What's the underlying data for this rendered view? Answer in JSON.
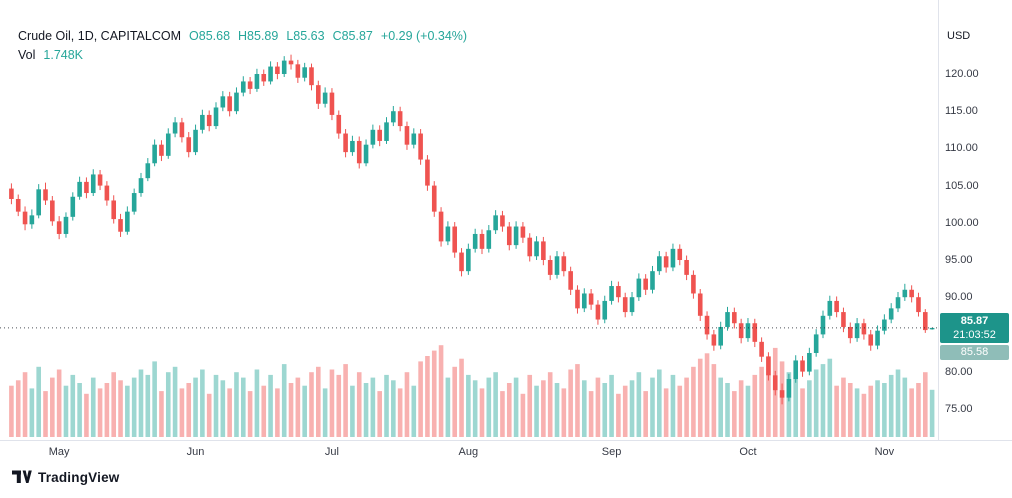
{
  "header": {
    "symbol_title": "Crude Oil, 1D, CAPITALCOM",
    "ohlc_tokens": [
      "O85.68",
      "H85.89",
      "L85.63",
      "C85.87",
      "+0.29 (+0.34%)"
    ],
    "vol_label": "Vol",
    "vol_value": "1.748K"
  },
  "price_axis": {
    "currency": "USD",
    "last_price_badge": {
      "price": "85.87",
      "countdown": "21:03:52"
    },
    "prev_close_badge": "85.58"
  },
  "footer": {
    "brand": "TradingView"
  },
  "chart_data": {
    "type": "candlestick+volume",
    "title": "Crude Oil, 1D, CAPITALCOM",
    "ylabel": "USD",
    "ylim": [
      73.5,
      123.5
    ],
    "y_ticks": [
      120,
      115,
      110,
      105,
      100,
      95,
      90,
      85,
      80,
      75
    ],
    "x_ticks": [
      {
        "label": "May",
        "i": 7
      },
      {
        "label": "Jun",
        "i": 27
      },
      {
        "label": "Jul",
        "i": 47
      },
      {
        "label": "Aug",
        "i": 67
      },
      {
        "label": "Sep",
        "i": 88
      },
      {
        "label": "Oct",
        "i": 108
      },
      {
        "label": "Nov",
        "i": 128
      }
    ],
    "last_price": 85.87,
    "prev_close": 85.58,
    "last_volume_k": 1.748,
    "colors": {
      "up": "#26a69a",
      "down": "#ef5350",
      "up_vol": "rgba(38,166,154,0.45)",
      "down_vol": "rgba(239,83,80,0.45)",
      "badge": "#1d948a",
      "prev_badge": "#8fbdb8",
      "grid_line": "#e0e3eb",
      "dotted_line": "#131722"
    },
    "candles": [
      [
        104.6,
        105.3,
        102.5,
        103.2,
        1.9
      ],
      [
        103.2,
        103.8,
        100.9,
        101.5,
        2.1
      ],
      [
        101.5,
        102.2,
        99.0,
        99.8,
        2.4
      ],
      [
        99.8,
        101.8,
        99.2,
        101.0,
        1.8
      ],
      [
        101.0,
        105.2,
        100.6,
        104.5,
        2.6
      ],
      [
        104.5,
        105.4,
        102.4,
        103.0,
        1.7
      ],
      [
        103.0,
        103.6,
        99.6,
        100.2,
        2.2
      ],
      [
        100.2,
        100.9,
        97.8,
        98.5,
        2.5
      ],
      [
        98.5,
        101.4,
        98.0,
        100.8,
        1.9
      ],
      [
        100.8,
        104.1,
        100.3,
        103.5,
        2.3
      ],
      [
        103.5,
        106.2,
        103.1,
        105.5,
        2.0
      ],
      [
        105.5,
        106.1,
        103.3,
        104.0,
        1.6
      ],
      [
        104.0,
        107.2,
        103.6,
        106.5,
        2.2
      ],
      [
        106.5,
        107.1,
        104.4,
        105.0,
        1.8
      ],
      [
        105.0,
        105.6,
        102.3,
        103.0,
        2.0
      ],
      [
        103.0,
        103.7,
        99.9,
        100.5,
        2.4
      ],
      [
        100.5,
        101.2,
        98.1,
        98.8,
        2.1
      ],
      [
        98.8,
        102.2,
        98.4,
        101.5,
        1.9
      ],
      [
        101.5,
        104.6,
        101.1,
        104.0,
        2.2
      ],
      [
        104.0,
        106.7,
        103.5,
        106.0,
        2.5
      ],
      [
        106.0,
        108.7,
        105.6,
        108.0,
        2.3
      ],
      [
        108.0,
        111.2,
        107.6,
        110.5,
        2.8
      ],
      [
        110.5,
        111.1,
        108.3,
        109.0,
        1.7
      ],
      [
        109.0,
        112.7,
        108.6,
        112.0,
        2.4
      ],
      [
        112.0,
        114.2,
        111.5,
        113.5,
        2.6
      ],
      [
        113.5,
        114.1,
        110.8,
        111.5,
        1.8
      ],
      [
        111.5,
        112.2,
        108.8,
        109.5,
        2.0
      ],
      [
        109.5,
        113.2,
        109.1,
        112.5,
        2.2
      ],
      [
        112.5,
        115.2,
        112.0,
        114.5,
        2.5
      ],
      [
        114.5,
        115.1,
        112.3,
        113.0,
        1.6
      ],
      [
        113.0,
        116.2,
        112.6,
        115.5,
        2.3
      ],
      [
        115.5,
        117.7,
        115.0,
        117.0,
        2.1
      ],
      [
        117.0,
        117.6,
        114.3,
        115.0,
        1.8
      ],
      [
        115.0,
        118.2,
        114.6,
        117.5,
        2.4
      ],
      [
        117.5,
        119.7,
        117.0,
        119.0,
        2.2
      ],
      [
        119.0,
        119.6,
        117.3,
        118.0,
        1.7
      ],
      [
        118.0,
        120.7,
        117.6,
        120.0,
        2.5
      ],
      [
        120.0,
        120.6,
        118.4,
        119.0,
        1.9
      ],
      [
        119.0,
        121.7,
        118.6,
        121.0,
        2.3
      ],
      [
        121.0,
        121.6,
        119.3,
        120.0,
        1.8
      ],
      [
        120.0,
        122.4,
        119.6,
        121.8,
        2.7
      ],
      [
        121.8,
        122.6,
        120.6,
        121.3,
        2.0
      ],
      [
        121.3,
        121.9,
        118.8,
        119.5,
        2.2
      ],
      [
        119.5,
        121.5,
        119.0,
        120.9,
        1.9
      ],
      [
        120.9,
        121.4,
        117.8,
        118.5,
        2.4
      ],
      [
        118.5,
        119.1,
        115.3,
        116.0,
        2.6
      ],
      [
        116.0,
        118.2,
        115.5,
        117.5,
        1.8
      ],
      [
        117.5,
        118.1,
        113.8,
        114.5,
        2.5
      ],
      [
        114.5,
        115.1,
        111.3,
        112.0,
        2.3
      ],
      [
        112.0,
        112.6,
        108.8,
        109.5,
        2.7
      ],
      [
        109.5,
        111.7,
        109.0,
        111.0,
        1.9
      ],
      [
        111.0,
        111.6,
        107.3,
        108.0,
        2.4
      ],
      [
        108.0,
        111.2,
        107.6,
        110.5,
        2.0
      ],
      [
        110.5,
        113.2,
        110.0,
        112.5,
        2.2
      ],
      [
        112.5,
        113.1,
        110.3,
        111.0,
        1.7
      ],
      [
        111.0,
        114.2,
        110.6,
        113.5,
        2.3
      ],
      [
        113.5,
        115.7,
        113.0,
        115.0,
        2.1
      ],
      [
        115.0,
        115.6,
        112.3,
        113.0,
        1.8
      ],
      [
        113.0,
        113.6,
        109.8,
        110.5,
        2.4
      ],
      [
        110.5,
        112.7,
        110.0,
        112.0,
        1.9
      ],
      [
        112.0,
        112.6,
        107.8,
        108.5,
        2.8
      ],
      [
        108.5,
        109.1,
        104.3,
        105.0,
        3.0
      ],
      [
        105.0,
        105.6,
        100.8,
        101.5,
        3.2
      ],
      [
        101.5,
        102.1,
        96.8,
        97.5,
        3.4
      ],
      [
        97.5,
        100.2,
        97.0,
        99.5,
        2.2
      ],
      [
        99.5,
        100.1,
        95.3,
        96.0,
        2.6
      ],
      [
        96.0,
        96.6,
        92.8,
        93.5,
        2.9
      ],
      [
        93.5,
        97.2,
        93.0,
        96.5,
        2.3
      ],
      [
        96.5,
        99.2,
        96.0,
        98.5,
        2.1
      ],
      [
        98.5,
        99.1,
        95.8,
        96.5,
        1.8
      ],
      [
        96.5,
        99.7,
        96.0,
        99.0,
        2.2
      ],
      [
        99.0,
        101.7,
        98.5,
        101.0,
        2.4
      ],
      [
        101.0,
        101.6,
        98.8,
        99.5,
        1.7
      ],
      [
        99.5,
        100.1,
        96.3,
        97.0,
        2.0
      ],
      [
        97.0,
        100.2,
        96.5,
        99.5,
        2.2
      ],
      [
        99.5,
        100.1,
        97.3,
        98.0,
        1.6
      ],
      [
        98.0,
        98.6,
        94.8,
        95.5,
        2.3
      ],
      [
        95.5,
        98.2,
        95.0,
        97.5,
        1.9
      ],
      [
        97.5,
        98.1,
        94.3,
        95.0,
        2.1
      ],
      [
        95.0,
        95.6,
        92.3,
        93.0,
        2.4
      ],
      [
        93.0,
        96.2,
        92.5,
        95.5,
        2.0
      ],
      [
        95.5,
        96.1,
        92.8,
        93.5,
        1.8
      ],
      [
        93.5,
        94.1,
        90.3,
        91.0,
        2.5
      ],
      [
        91.0,
        91.6,
        87.8,
        88.5,
        2.7
      ],
      [
        88.5,
        91.2,
        88.0,
        90.5,
        2.1
      ],
      [
        90.5,
        91.1,
        88.3,
        89.0,
        1.7
      ],
      [
        89.0,
        89.6,
        86.3,
        87.0,
        2.2
      ],
      [
        87.0,
        90.2,
        86.5,
        89.5,
        2.0
      ],
      [
        89.5,
        92.2,
        89.0,
        91.5,
        2.3
      ],
      [
        91.5,
        92.1,
        89.3,
        90.0,
        1.6
      ],
      [
        90.0,
        90.6,
        87.3,
        88.0,
        1.9
      ],
      [
        88.0,
        90.7,
        87.5,
        90.0,
        2.1
      ],
      [
        90.0,
        93.2,
        89.5,
        92.5,
        2.4
      ],
      [
        92.5,
        93.1,
        90.3,
        91.0,
        1.7
      ],
      [
        91.0,
        94.2,
        90.5,
        93.5,
        2.2
      ],
      [
        93.5,
        96.2,
        93.0,
        95.5,
        2.5
      ],
      [
        95.5,
        96.1,
        93.3,
        94.0,
        1.8
      ],
      [
        94.0,
        97.2,
        93.5,
        96.5,
        2.3
      ],
      [
        96.5,
        97.1,
        94.3,
        95.0,
        1.9
      ],
      [
        95.0,
        95.6,
        92.3,
        93.0,
        2.2
      ],
      [
        93.0,
        93.6,
        89.8,
        90.5,
        2.6
      ],
      [
        90.5,
        91.1,
        86.8,
        87.5,
        2.9
      ],
      [
        87.5,
        88.1,
        84.3,
        85.0,
        3.1
      ],
      [
        85.0,
        85.6,
        82.8,
        83.5,
        2.7
      ],
      [
        83.5,
        86.7,
        83.0,
        86.0,
        2.2
      ],
      [
        86.0,
        88.7,
        85.5,
        88.0,
        2.0
      ],
      [
        88.0,
        88.6,
        85.8,
        86.5,
        1.7
      ],
      [
        86.5,
        87.1,
        83.8,
        84.5,
        2.1
      ],
      [
        84.5,
        87.2,
        84.0,
        86.5,
        1.9
      ],
      [
        86.5,
        87.1,
        83.3,
        84.0,
        2.3
      ],
      [
        84.0,
        84.6,
        81.3,
        82.0,
        2.6
      ],
      [
        82.0,
        82.6,
        78.8,
        79.5,
        3.0
      ],
      [
        79.5,
        80.1,
        76.8,
        77.5,
        3.3
      ],
      [
        77.5,
        78.4,
        75.6,
        76.5,
        2.8
      ],
      [
        76.5,
        79.7,
        76.0,
        79.0,
        2.4
      ],
      [
        79.0,
        82.2,
        78.5,
        81.5,
        2.2
      ],
      [
        81.5,
        82.1,
        79.3,
        80.0,
        1.8
      ],
      [
        80.0,
        83.2,
        79.5,
        82.5,
        2.1
      ],
      [
        82.5,
        85.7,
        82.0,
        85.0,
        2.5
      ],
      [
        85.0,
        88.2,
        84.5,
        87.5,
        2.7
      ],
      [
        87.5,
        90.2,
        87.0,
        89.5,
        2.9
      ],
      [
        89.5,
        90.1,
        87.3,
        88.0,
        1.9
      ],
      [
        88.0,
        88.6,
        85.3,
        86.0,
        2.2
      ],
      [
        86.0,
        86.6,
        83.8,
        84.5,
        2.0
      ],
      [
        84.5,
        87.2,
        84.0,
        86.5,
        1.8
      ],
      [
        86.5,
        87.1,
        84.3,
        85.0,
        1.6
      ],
      [
        85.0,
        85.6,
        82.8,
        83.5,
        1.9
      ],
      [
        83.5,
        86.2,
        83.0,
        85.5,
        2.1
      ],
      [
        85.5,
        87.7,
        85.0,
        87.0,
        2.0
      ],
      [
        87.0,
        89.2,
        86.5,
        88.5,
        2.3
      ],
      [
        88.5,
        90.7,
        88.0,
        90.0,
        2.5
      ],
      [
        90.0,
        91.8,
        89.5,
        91.0,
        2.2
      ],
      [
        91.0,
        91.6,
        89.3,
        90.0,
        1.8
      ],
      [
        90.0,
        90.6,
        87.4,
        88.0,
        2.0
      ],
      [
        88.0,
        88.4,
        85.2,
        85.58,
        2.4
      ],
      [
        85.68,
        85.89,
        85.63,
        85.87,
        1.748
      ]
    ]
  }
}
